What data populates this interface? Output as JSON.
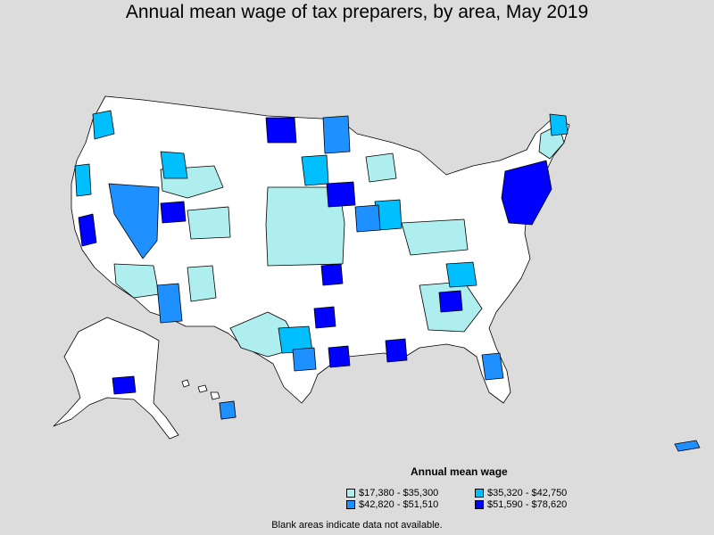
{
  "title": "Annual mean wage of tax preparers, by area, May 2019",
  "legend": {
    "title": "Annual mean wage",
    "items": [
      {
        "label": "$17,380 - $35,300",
        "color": "#aeeeee"
      },
      {
        "label": "$35,320 - $42,750",
        "color": "#00bfff"
      },
      {
        "label": "$42,820 - $51,510",
        "color": "#1e90ff"
      },
      {
        "label": "$51,590 - $78,620",
        "color": "#0000ff"
      }
    ]
  },
  "footnote": "Blank areas indicate data not available.",
  "colors": {
    "background": "#dcdcdc",
    "no_data": "#ffffff",
    "border": "#000000"
  }
}
